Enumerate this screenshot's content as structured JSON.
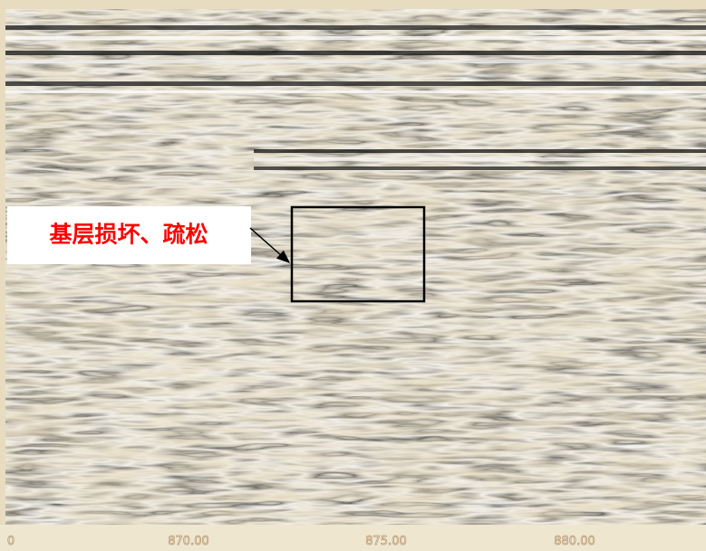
{
  "annotation": {
    "label": "基层损坏、疏松"
  },
  "axis": {
    "labels": [
      "0",
      "870.00",
      "875.00",
      "880.00"
    ]
  }
}
